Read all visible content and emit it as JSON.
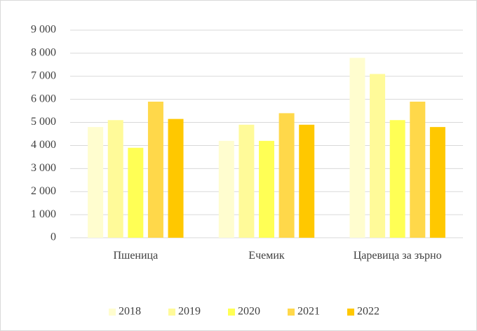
{
  "chart_data": {
    "type": "bar",
    "categories": [
      "Пшеница",
      "Ечемик",
      "Царевица за зърно"
    ],
    "series": [
      {
        "name": "2018",
        "color": "#FFFDCF",
        "values": [
          4800,
          4200,
          7800
        ]
      },
      {
        "name": "2019",
        "color": "#FFFA99",
        "values": [
          5100,
          4900,
          7100
        ]
      },
      {
        "name": "2020",
        "color": "#FFFF55",
        "values": [
          3900,
          4200,
          5100
        ]
      },
      {
        "name": "2021",
        "color": "#FFD84A",
        "values": [
          5900,
          5400,
          5900
        ]
      },
      {
        "name": "2022",
        "color": "#FFC800",
        "values": [
          5150,
          4900,
          4800
        ]
      }
    ],
    "ylim": [
      0,
      9000
    ],
    "yticks": [
      {
        "value": 0,
        "label": "0"
      },
      {
        "value": 1000,
        "label": "1 000"
      },
      {
        "value": 2000,
        "label": "2 000"
      },
      {
        "value": 3000,
        "label": "3 000"
      },
      {
        "value": 4000,
        "label": "4 000"
      },
      {
        "value": 5000,
        "label": "5 000"
      },
      {
        "value": 6000,
        "label": "6 000"
      },
      {
        "value": 7000,
        "label": "7 000"
      },
      {
        "value": 8000,
        "label": "8 000"
      },
      {
        "value": 9000,
        "label": "9 000"
      }
    ],
    "grid": true,
    "legend": "bottom"
  }
}
